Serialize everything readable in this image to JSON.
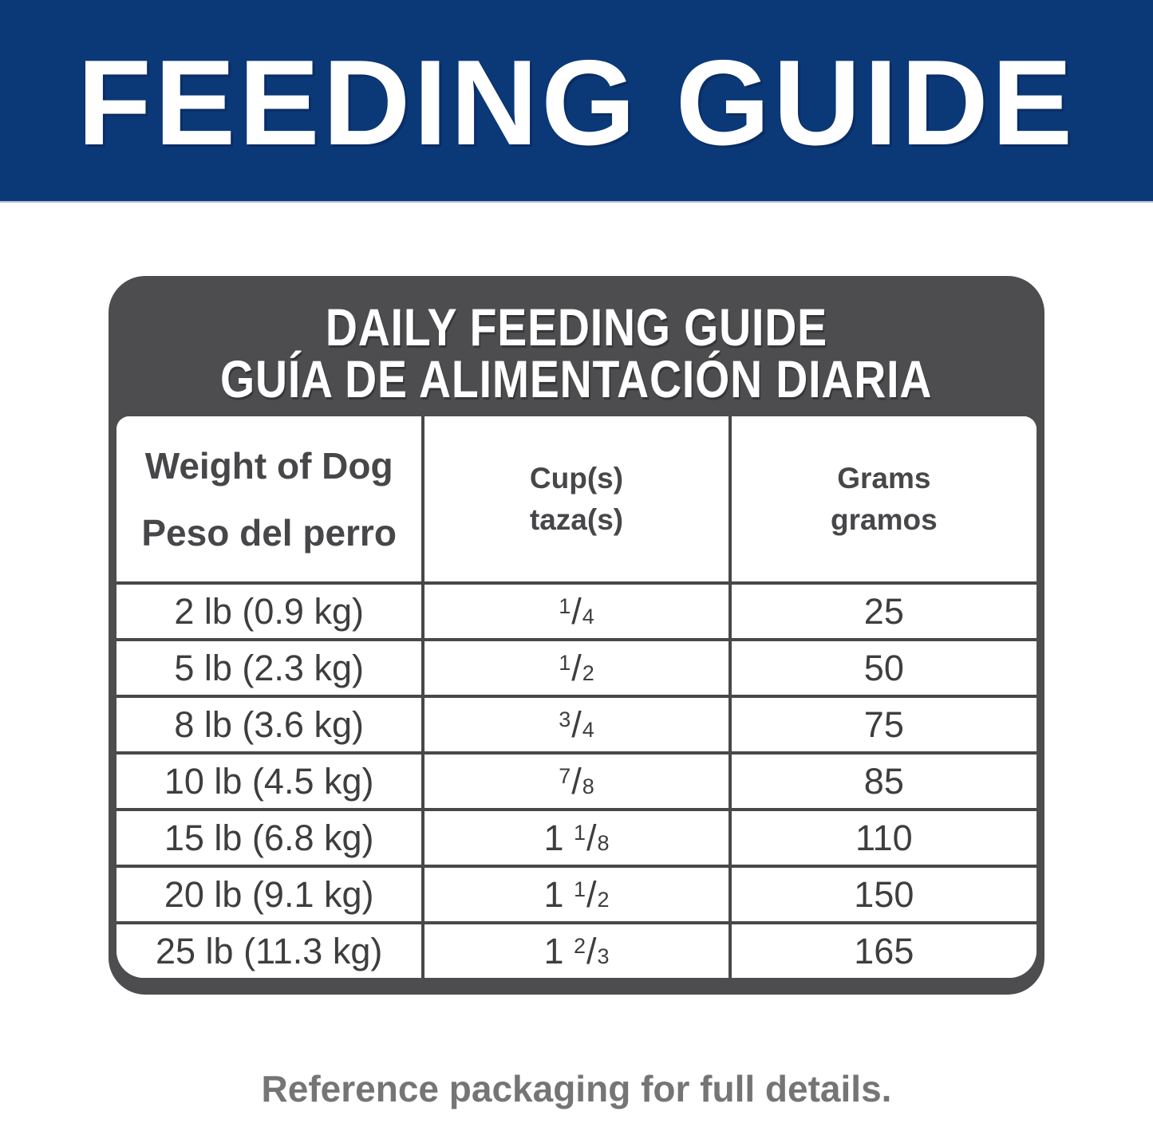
{
  "banner": {
    "title": "FEEDING GUIDE",
    "bg_color": "#0b3877",
    "text_color": "#ffffff"
  },
  "card": {
    "title_line1": "DAILY FEEDING GUIDE",
    "title_line2": "GUÍA DE ALIMENTACIÓN DIARIA",
    "bg_color": "#4d4d4f"
  },
  "table": {
    "columns": [
      {
        "label_en": "Weight of Dog",
        "label_es": "Peso del perro"
      },
      {
        "label_en": "Cup(s)",
        "label_es": "taza(s)"
      },
      {
        "label_en": "Grams",
        "label_es": "gramos"
      }
    ],
    "rows": [
      {
        "weight": "2 lb (0.9 kg)",
        "cups": "1/4",
        "grams": "25"
      },
      {
        "weight": "5 lb (2.3 kg)",
        "cups": "1/2",
        "grams": "50"
      },
      {
        "weight": "8 lb (3.6 kg)",
        "cups": "3/4",
        "grams": "75"
      },
      {
        "weight": "10 lb (4.5 kg)",
        "cups": "7/8",
        "grams": "85"
      },
      {
        "weight": "15 lb (6.8 kg)",
        "cups": "1 1/8",
        "grams": "110"
      },
      {
        "weight": "20 lb (9.1 kg)",
        "cups": "1 1/2",
        "grams": "150"
      },
      {
        "weight": "25 lb (11.3 kg)",
        "cups": "1 2/3",
        "grams": "165"
      }
    ]
  },
  "footer": {
    "note": "Reference packaging for full details."
  }
}
